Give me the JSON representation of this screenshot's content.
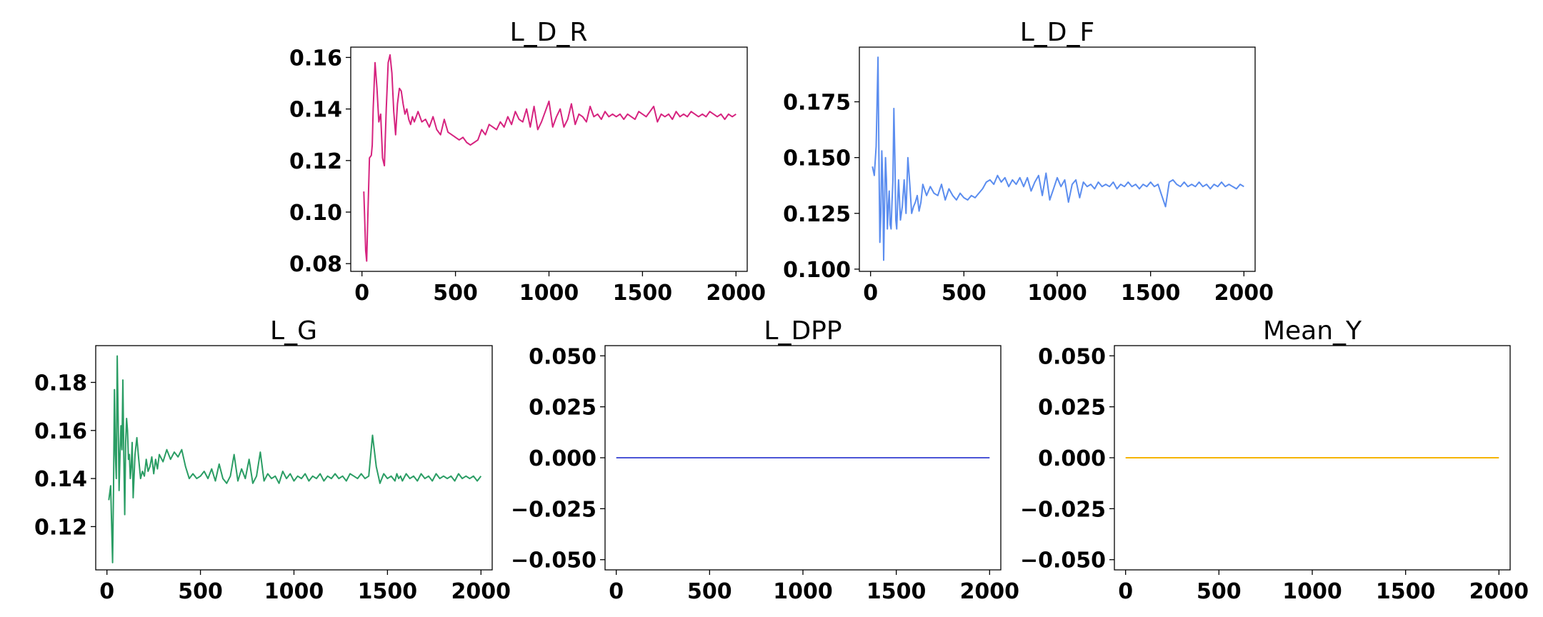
{
  "figure": {
    "background": "#ffffff"
  },
  "chart_data": [
    {
      "type": "line",
      "title": "L_D_R",
      "xlabel": "",
      "ylabel": "",
      "xlim": [
        -60,
        2060
      ],
      "ylim": [
        0.077,
        0.164
      ],
      "xticks": [
        0,
        500,
        1000,
        1500,
        2000
      ],
      "xtick_labels": [
        "0",
        "500",
        "1000",
        "1500",
        "2000"
      ],
      "yticks": [
        0.08,
        0.1,
        0.12,
        0.14,
        0.16
      ],
      "ytick_labels": [
        "0.08",
        "0.10",
        "0.12",
        "0.14",
        "0.16"
      ],
      "grid": false,
      "series": [
        {
          "color": "#d6237f",
          "x": [
            10,
            20,
            25,
            30,
            40,
            50,
            55,
            60,
            70,
            80,
            90,
            100,
            110,
            120,
            130,
            140,
            150,
            160,
            170,
            180,
            190,
            200,
            210,
            220,
            230,
            240,
            250,
            260,
            270,
            280,
            300,
            320,
            340,
            360,
            380,
            400,
            420,
            440,
            460,
            480,
            500,
            520,
            540,
            560,
            580,
            600,
            620,
            640,
            660,
            680,
            700,
            720,
            740,
            760,
            780,
            800,
            820,
            840,
            860,
            880,
            900,
            920,
            940,
            960,
            980,
            1000,
            1020,
            1040,
            1060,
            1080,
            1100,
            1120,
            1140,
            1160,
            1180,
            1200,
            1220,
            1240,
            1260,
            1280,
            1300,
            1320,
            1340,
            1360,
            1380,
            1400,
            1420,
            1440,
            1460,
            1480,
            1500,
            1520,
            1540,
            1560,
            1580,
            1600,
            1620,
            1640,
            1660,
            1680,
            1700,
            1720,
            1740,
            1760,
            1780,
            1800,
            1820,
            1840,
            1860,
            1880,
            1900,
            1920,
            1940,
            1960,
            1980,
            2000
          ],
          "values": [
            0.108,
            0.085,
            0.081,
            0.095,
            0.121,
            0.122,
            0.126,
            0.14,
            0.158,
            0.148,
            0.135,
            0.138,
            0.121,
            0.118,
            0.14,
            0.158,
            0.161,
            0.154,
            0.139,
            0.13,
            0.142,
            0.148,
            0.147,
            0.142,
            0.138,
            0.14,
            0.136,
            0.134,
            0.137,
            0.135,
            0.139,
            0.135,
            0.136,
            0.133,
            0.137,
            0.132,
            0.13,
            0.136,
            0.131,
            0.13,
            0.129,
            0.128,
            0.129,
            0.127,
            0.126,
            0.127,
            0.128,
            0.132,
            0.13,
            0.134,
            0.133,
            0.132,
            0.135,
            0.133,
            0.137,
            0.134,
            0.139,
            0.136,
            0.135,
            0.14,
            0.133,
            0.141,
            0.132,
            0.135,
            0.139,
            0.143,
            0.133,
            0.137,
            0.14,
            0.133,
            0.136,
            0.142,
            0.134,
            0.138,
            0.137,
            0.135,
            0.141,
            0.137,
            0.138,
            0.136,
            0.139,
            0.137,
            0.138,
            0.137,
            0.138,
            0.136,
            0.138,
            0.137,
            0.136,
            0.139,
            0.138,
            0.137,
            0.139,
            0.141,
            0.135,
            0.138,
            0.137,
            0.138,
            0.136,
            0.139,
            0.137,
            0.138,
            0.137,
            0.139,
            0.138,
            0.137,
            0.138,
            0.137,
            0.139,
            0.138,
            0.137,
            0.138,
            0.136,
            0.138,
            0.137,
            0.138
          ]
        }
      ]
    },
    {
      "type": "line",
      "title": "L_D_F",
      "xlabel": "",
      "ylabel": "",
      "xlim": [
        -60,
        2060
      ],
      "ylim": [
        0.099,
        0.1995
      ],
      "xticks": [
        0,
        500,
        1000,
        1500,
        2000
      ],
      "xtick_labels": [
        "0",
        "500",
        "1000",
        "1500",
        "2000"
      ],
      "yticks": [
        0.1,
        0.125,
        0.15,
        0.175
      ],
      "ytick_labels": [
        "0.100",
        "0.125",
        "0.150",
        "0.175"
      ],
      "grid": false,
      "series": [
        {
          "color": "#5b8def",
          "x": [
            10,
            20,
            30,
            40,
            45,
            50,
            55,
            60,
            65,
            70,
            75,
            80,
            85,
            90,
            95,
            100,
            105,
            110,
            115,
            120,
            125,
            130,
            135,
            140,
            145,
            150,
            160,
            170,
            180,
            190,
            200,
            210,
            220,
            230,
            240,
            250,
            260,
            270,
            280,
            300,
            320,
            340,
            360,
            380,
            400,
            420,
            440,
            460,
            480,
            500,
            520,
            540,
            560,
            580,
            600,
            620,
            640,
            660,
            680,
            700,
            720,
            740,
            760,
            780,
            800,
            820,
            840,
            860,
            880,
            900,
            920,
            940,
            960,
            980,
            1000,
            1020,
            1040,
            1060,
            1080,
            1100,
            1120,
            1140,
            1160,
            1180,
            1200,
            1220,
            1240,
            1260,
            1280,
            1300,
            1320,
            1340,
            1360,
            1380,
            1400,
            1420,
            1440,
            1460,
            1480,
            1500,
            1520,
            1540,
            1560,
            1580,
            1600,
            1620,
            1640,
            1660,
            1680,
            1700,
            1720,
            1740,
            1760,
            1780,
            1800,
            1820,
            1840,
            1860,
            1880,
            1900,
            1920,
            1940,
            1960,
            1980,
            2000
          ],
          "values": [
            0.146,
            0.142,
            0.155,
            0.195,
            0.15,
            0.112,
            0.125,
            0.153,
            0.14,
            0.104,
            0.13,
            0.15,
            0.14,
            0.118,
            0.128,
            0.135,
            0.12,
            0.118,
            0.13,
            0.14,
            0.172,
            0.15,
            0.122,
            0.118,
            0.13,
            0.14,
            0.122,
            0.128,
            0.14,
            0.125,
            0.15,
            0.138,
            0.125,
            0.128,
            0.13,
            0.133,
            0.126,
            0.13,
            0.138,
            0.133,
            0.137,
            0.134,
            0.133,
            0.138,
            0.131,
            0.136,
            0.133,
            0.131,
            0.134,
            0.132,
            0.131,
            0.133,
            0.132,
            0.134,
            0.136,
            0.139,
            0.14,
            0.138,
            0.142,
            0.139,
            0.141,
            0.137,
            0.14,
            0.138,
            0.141,
            0.137,
            0.141,
            0.135,
            0.139,
            0.142,
            0.133,
            0.143,
            0.131,
            0.136,
            0.141,
            0.137,
            0.14,
            0.13,
            0.138,
            0.14,
            0.132,
            0.139,
            0.137,
            0.138,
            0.136,
            0.139,
            0.137,
            0.138,
            0.137,
            0.139,
            0.136,
            0.138,
            0.137,
            0.139,
            0.137,
            0.138,
            0.136,
            0.138,
            0.137,
            0.139,
            0.137,
            0.138,
            0.133,
            0.128,
            0.139,
            0.14,
            0.138,
            0.137,
            0.139,
            0.137,
            0.138,
            0.137,
            0.139,
            0.137,
            0.138,
            0.136,
            0.138,
            0.137,
            0.139,
            0.137,
            0.138,
            0.137,
            0.136,
            0.138,
            0.137
          ]
        }
      ]
    },
    {
      "type": "line",
      "title": "L_G",
      "xlabel": "",
      "ylabel": "",
      "xlim": [
        -60,
        2060
      ],
      "ylim": [
        0.102,
        0.1953
      ],
      "xticks": [
        0,
        500,
        1000,
        1500,
        2000
      ],
      "xtick_labels": [
        "0",
        "500",
        "1000",
        "1500",
        "2000"
      ],
      "yticks": [
        0.12,
        0.14,
        0.16,
        0.18
      ],
      "ytick_labels": [
        "0.12",
        "0.14",
        "0.16",
        "0.18"
      ],
      "grid": false,
      "series": [
        {
          "color": "#2a9d64",
          "x": [
            10,
            20,
            30,
            35,
            40,
            45,
            50,
            55,
            60,
            65,
            70,
            75,
            80,
            85,
            90,
            95,
            100,
            105,
            110,
            115,
            120,
            125,
            130,
            135,
            140,
            150,
            160,
            170,
            180,
            190,
            200,
            210,
            220,
            230,
            240,
            250,
            260,
            270,
            280,
            300,
            320,
            340,
            360,
            380,
            400,
            420,
            440,
            460,
            480,
            500,
            520,
            540,
            560,
            580,
            600,
            620,
            640,
            660,
            680,
            700,
            720,
            740,
            760,
            780,
            800,
            820,
            840,
            860,
            880,
            900,
            920,
            940,
            960,
            980,
            1000,
            1020,
            1040,
            1060,
            1080,
            1100,
            1120,
            1140,
            1160,
            1180,
            1200,
            1220,
            1240,
            1260,
            1280,
            1300,
            1320,
            1340,
            1360,
            1380,
            1400,
            1420,
            1440,
            1460,
            1480,
            1500,
            1520,
            1540,
            1550,
            1560,
            1570,
            1580,
            1600,
            1620,
            1640,
            1660,
            1680,
            1700,
            1720,
            1740,
            1760,
            1780,
            1800,
            1820,
            1840,
            1860,
            1880,
            1900,
            1920,
            1940,
            1960,
            1980,
            2000
          ],
          "values": [
            0.131,
            0.137,
            0.105,
            0.135,
            0.177,
            0.15,
            0.14,
            0.191,
            0.165,
            0.135,
            0.15,
            0.162,
            0.152,
            0.181,
            0.15,
            0.125,
            0.155,
            0.165,
            0.16,
            0.148,
            0.15,
            0.14,
            0.145,
            0.155,
            0.132,
            0.15,
            0.157,
            0.148,
            0.14,
            0.143,
            0.141,
            0.148,
            0.143,
            0.145,
            0.149,
            0.142,
            0.148,
            0.144,
            0.15,
            0.147,
            0.152,
            0.148,
            0.151,
            0.149,
            0.152,
            0.145,
            0.14,
            0.142,
            0.14,
            0.141,
            0.143,
            0.14,
            0.144,
            0.139,
            0.146,
            0.14,
            0.138,
            0.141,
            0.15,
            0.139,
            0.144,
            0.14,
            0.148,
            0.138,
            0.141,
            0.151,
            0.139,
            0.142,
            0.14,
            0.141,
            0.138,
            0.143,
            0.14,
            0.142,
            0.139,
            0.141,
            0.14,
            0.142,
            0.139,
            0.141,
            0.14,
            0.142,
            0.139,
            0.141,
            0.14,
            0.142,
            0.14,
            0.141,
            0.139,
            0.142,
            0.141,
            0.14,
            0.142,
            0.14,
            0.141,
            0.158,
            0.145,
            0.138,
            0.142,
            0.14,
            0.141,
            0.139,
            0.142,
            0.14,
            0.141,
            0.139,
            0.142,
            0.14,
            0.141,
            0.139,
            0.142,
            0.14,
            0.141,
            0.139,
            0.142,
            0.14,
            0.141,
            0.14,
            0.141,
            0.139,
            0.142,
            0.14,
            0.141,
            0.14,
            0.141,
            0.139,
            0.141
          ]
        }
      ]
    },
    {
      "type": "line",
      "title": "L_DPP",
      "xlabel": "",
      "ylabel": "",
      "xlim": [
        -60,
        2060
      ],
      "ylim": [
        -0.055,
        0.055
      ],
      "xticks": [
        0,
        500,
        1000,
        1500,
        2000
      ],
      "xtick_labels": [
        "0",
        "500",
        "1000",
        "1500",
        "2000"
      ],
      "yticks": [
        -0.05,
        -0.025,
        0.0,
        0.025,
        0.05
      ],
      "ytick_labels": [
        "−0.050",
        "−0.025",
        "0.000",
        "0.025",
        "0.050"
      ],
      "grid": false,
      "series": [
        {
          "color": "#4b55d6",
          "x": [
            0,
            2000
          ],
          "values": [
            0.0,
            0.0
          ]
        }
      ]
    },
    {
      "type": "line",
      "title": "Mean_Y",
      "xlabel": "",
      "ylabel": "",
      "xlim": [
        -60,
        2060
      ],
      "ylim": [
        -0.055,
        0.055
      ],
      "xticks": [
        0,
        500,
        1000,
        1500,
        2000
      ],
      "xtick_labels": [
        "0",
        "500",
        "1000",
        "1500",
        "2000"
      ],
      "yticks": [
        -0.05,
        -0.025,
        0.0,
        0.025,
        0.05
      ],
      "ytick_labels": [
        "−0.050",
        "−0.025",
        "0.000",
        "0.025",
        "0.050"
      ],
      "grid": false,
      "series": [
        {
          "color": "#f5b400",
          "x": [
            0,
            2000
          ],
          "values": [
            0.0,
            0.0
          ]
        }
      ]
    }
  ]
}
